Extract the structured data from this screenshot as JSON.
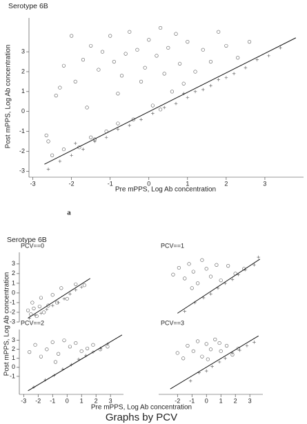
{
  "chart_data": [
    {
      "type": "scatter",
      "title": "Serotype 6B",
      "x_label": "Pre mPPS, Log Ab concentration",
      "y_label": "Post mPPS, Log Ab concentration",
      "xlim": [
        -3.1,
        4.0
      ],
      "ylim": [
        -3.3,
        4.7
      ],
      "xticks": [
        -3,
        -2,
        -1,
        0,
        1,
        2,
        3
      ],
      "yticks": [
        -3,
        -2,
        -1,
        0,
        1,
        2,
        3
      ],
      "series": [
        {
          "marker": "circle",
          "color": "#555555",
          "x": [
            -2.6,
            -2.5,
            -2.4,
            -2.3,
            -2.2,
            -2.0,
            -1.9,
            -1.8,
            -1.7,
            -1.6,
            -1.5,
            -1.4,
            -1.3,
            -1.2,
            -1.1,
            -1.0,
            -0.9,
            -0.8,
            -0.7,
            -0.6,
            -0.5,
            -0.4,
            -0.3,
            -0.2,
            -0.1,
            0.0,
            0.1,
            0.2,
            0.3,
            0.4,
            0.5,
            0.6,
            0.7,
            0.8,
            0.9,
            1.0,
            1.2,
            1.4,
            1.6,
            1.8,
            2.0,
            2.3,
            2.6,
            -2.65,
            -2.2,
            -1.5,
            -0.8,
            0.3
          ],
          "values": [
            -1.5,
            -2.2,
            0.8,
            1.2,
            2.3,
            3.8,
            1.5,
            -1.8,
            2.6,
            0.2,
            3.3,
            -1.4,
            2.1,
            3.0,
            -1.0,
            3.8,
            2.5,
            0.9,
            1.8,
            2.9,
            4.0,
            -0.4,
            3.1,
            1.5,
            2.2,
            3.6,
            0.3,
            2.8,
            4.2,
            1.9,
            3.2,
            1.0,
            3.9,
            2.4,
            1.4,
            3.5,
            2.0,
            3.1,
            2.5,
            4.0,
            3.3,
            2.7,
            3.5,
            -1.2,
            -1.9,
            -1.3,
            -0.6,
            0.1
          ]
        },
        {
          "marker": "plus",
          "color": "#555555",
          "x": [
            -2.6,
            -2.3,
            -2.0,
            -1.7,
            -1.4,
            -1.1,
            -0.8,
            -0.5,
            -0.2,
            0.1,
            0.4,
            0.7,
            1.0,
            1.2,
            1.4,
            1.6,
            1.8,
            2.0,
            2.2,
            2.5,
            2.8,
            3.1,
            3.4,
            -1.9,
            0.9
          ],
          "values": [
            -2.9,
            -2.5,
            -2.2,
            -1.9,
            -1.5,
            -1.3,
            -0.9,
            -0.7,
            -0.4,
            -0.1,
            0.2,
            0.4,
            0.7,
            1.0,
            1.1,
            1.3,
            1.6,
            1.7,
            1.9,
            2.2,
            2.6,
            2.8,
            3.2,
            -1.6,
            0.9
          ]
        },
        {
          "marker": "line",
          "color": "#111111",
          "x": [
            -2.7,
            3.8
          ],
          "values": [
            -2.65,
            3.7
          ]
        }
      ]
    },
    {
      "type": "scatter",
      "title": "PCV==0",
      "xlim": [
        -3.3,
        3.9
      ],
      "ylim": [
        -3.0,
        4.2
      ],
      "yticks": [
        -3,
        -2,
        -1,
        0,
        1,
        2,
        3
      ],
      "series": [
        {
          "marker": "circle",
          "color": "#555555",
          "x": [
            -2.7,
            -2.5,
            -2.3,
            -2.1,
            -1.9,
            -1.6,
            -1.3,
            -1.0,
            -0.7,
            -0.4,
            0.0,
            0.6,
            1.2,
            -2.4,
            -1.8
          ],
          "values": [
            -1.8,
            -2.2,
            -1.6,
            -2.4,
            -1.4,
            -2.0,
            -1.3,
            -0.2,
            -1.0,
            0.5,
            -0.6,
            0.9,
            0.8,
            -1.0,
            -0.5
          ]
        },
        {
          "marker": "plus",
          "color": "#555555",
          "x": [
            -2.6,
            -2.2,
            -1.8,
            -1.4,
            -1.0,
            -0.6,
            -0.2,
            0.2,
            0.6,
            1.0
          ],
          "values": [
            -2.6,
            -2.3,
            -2.1,
            -1.7,
            -1.3,
            -1.0,
            -0.6,
            -0.1,
            0.3,
            0.6
          ]
        },
        {
          "marker": "line",
          "color": "#111111",
          "x": [
            -2.7,
            1.6
          ],
          "values": [
            -2.6,
            1.5
          ]
        }
      ]
    },
    {
      "type": "scatter",
      "title": "PCV==1",
      "xlim": [
        -3.3,
        3.9
      ],
      "ylim": [
        -3.0,
        4.2
      ],
      "series": [
        {
          "marker": "circle",
          "color": "#555555",
          "x": [
            -2.3,
            -1.9,
            -1.5,
            -1.2,
            -0.9,
            -0.6,
            -0.3,
            0.0,
            0.3,
            0.7,
            1.0,
            1.5,
            2.0,
            2.6,
            -1.0
          ],
          "values": [
            1.9,
            2.6,
            1.5,
            3.0,
            2.2,
            1.0,
            3.4,
            2.5,
            1.7,
            2.9,
            1.3,
            2.8,
            2.0,
            2.5,
            0.5
          ]
        },
        {
          "marker": "plus",
          "color": "#555555",
          "x": [
            -1.5,
            -0.8,
            -0.2,
            0.3,
            0.8,
            1.3,
            1.8,
            2.2,
            2.7,
            3.3,
            3.6
          ],
          "values": [
            -1.9,
            -1.0,
            -0.5,
            -0.1,
            0.5,
            1.0,
            1.4,
            1.9,
            2.4,
            2.9,
            3.7
          ]
        },
        {
          "marker": "line",
          "color": "#111111",
          "x": [
            -2.0,
            3.7
          ],
          "values": [
            -2.1,
            3.5
          ]
        }
      ]
    },
    {
      "type": "scatter",
      "title": "PCV==2",
      "xlim": [
        -3.3,
        3.9
      ],
      "ylim": [
        -3.0,
        4.2
      ],
      "xticks": [
        -3,
        -2,
        -1,
        0,
        1,
        2,
        3
      ],
      "yticks": [
        -1,
        0,
        1,
        2,
        3
      ],
      "series": [
        {
          "marker": "circle",
          "color": "#555555",
          "x": [
            -2.6,
            -2.2,
            -1.8,
            -1.4,
            -1.0,
            -0.6,
            -0.2,
            0.2,
            0.6,
            1.0,
            1.4,
            1.8,
            2.3,
            2.8,
            -0.8
          ],
          "values": [
            1.7,
            2.5,
            1.2,
            2.0,
            2.8,
            1.5,
            3.0,
            2.3,
            2.7,
            1.8,
            2.1,
            2.5,
            2.0,
            2.3,
            0.6
          ]
        },
        {
          "marker": "plus",
          "color": "#555555",
          "x": [
            -2.3,
            -1.5,
            -0.9,
            -0.3,
            0.3,
            0.8,
            1.3,
            1.8,
            2.3,
            2.8
          ],
          "values": [
            -2.2,
            -1.4,
            -0.9,
            -0.2,
            0.3,
            0.9,
            1.3,
            1.7,
            2.1,
            2.6
          ]
        },
        {
          "marker": "line",
          "color": "#111111",
          "x": [
            -2.7,
            3.8
          ],
          "values": [
            -2.6,
            3.6
          ]
        }
      ]
    },
    {
      "type": "scatter",
      "title": "PCV==3",
      "xlim": [
        -3.3,
        3.9
      ],
      "ylim": [
        -3.0,
        4.2
      ],
      "xticks": [
        -2,
        -1,
        0,
        1,
        2,
        3
      ],
      "series": [
        {
          "marker": "circle",
          "color": "#555555",
          "x": [
            -2.0,
            -1.3,
            -0.9,
            -0.6,
            -0.3,
            0.0,
            0.3,
            0.6,
            1.0,
            1.4,
            1.8,
            2.2,
            -1.6,
            0.1,
            0.9
          ],
          "values": [
            1.6,
            2.4,
            1.8,
            2.9,
            1.2,
            2.6,
            2.0,
            3.1,
            1.8,
            2.4,
            1.4,
            2.1,
            1.0,
            0.9,
            2.7
          ]
        },
        {
          "marker": "plus",
          "color": "#555555",
          "x": [
            -1.1,
            -0.5,
            0.0,
            0.4,
            0.9,
            1.3,
            1.8,
            2.3,
            2.8,
            3.3
          ],
          "values": [
            -1.5,
            -0.6,
            -0.4,
            0.1,
            0.6,
            1.0,
            1.6,
            1.9,
            2.4,
            2.8
          ]
        },
        {
          "marker": "line",
          "color": "#111111",
          "x": [
            -2.5,
            3.6
          ],
          "values": [
            -2.4,
            3.5
          ]
        }
      ]
    }
  ],
  "figure_a": {
    "label": "a"
  },
  "figure_b": {
    "title": "Serotype 6B",
    "y_label": "Post mPPS, Log Ab concentration",
    "x_label": "Pre mPPS, Log Ab concentration",
    "note": "Graphs by PCV"
  }
}
